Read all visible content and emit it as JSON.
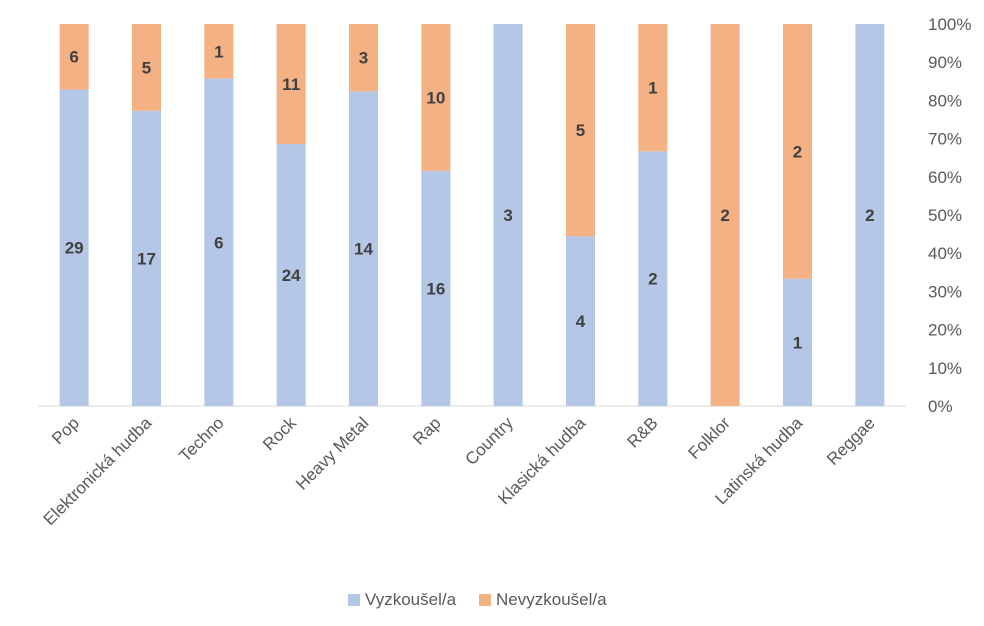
{
  "chart_data": {
    "type": "bar",
    "stacked": "percent",
    "categories": [
      "Pop",
      "Elektronická hudba",
      "Techno",
      "Rock",
      "Heavy Metal",
      "Rap",
      "Country",
      "Klasická hudba",
      "R&B",
      "Folklor",
      "Latinská hudba",
      "Reggae"
    ],
    "series": [
      {
        "name": "Vyzkoušel/a",
        "values": [
          29,
          17,
          6,
          24,
          14,
          16,
          3,
          4,
          2,
          0,
          1,
          2
        ],
        "color": "#b4c7e7"
      },
      {
        "name": "Nevyzkoušel/a",
        "values": [
          6,
          5,
          1,
          11,
          3,
          10,
          0,
          5,
          1,
          2,
          2,
          0
        ],
        "color": "#f4b183"
      }
    ],
    "y_ticks": [
      "0%",
      "10%",
      "20%",
      "30%",
      "40%",
      "50%",
      "60%",
      "70%",
      "80%",
      "90%",
      "100%"
    ],
    "ylim": [
      0,
      100
    ],
    "axis_position": "right",
    "legend_position": "bottom",
    "grid": false
  }
}
